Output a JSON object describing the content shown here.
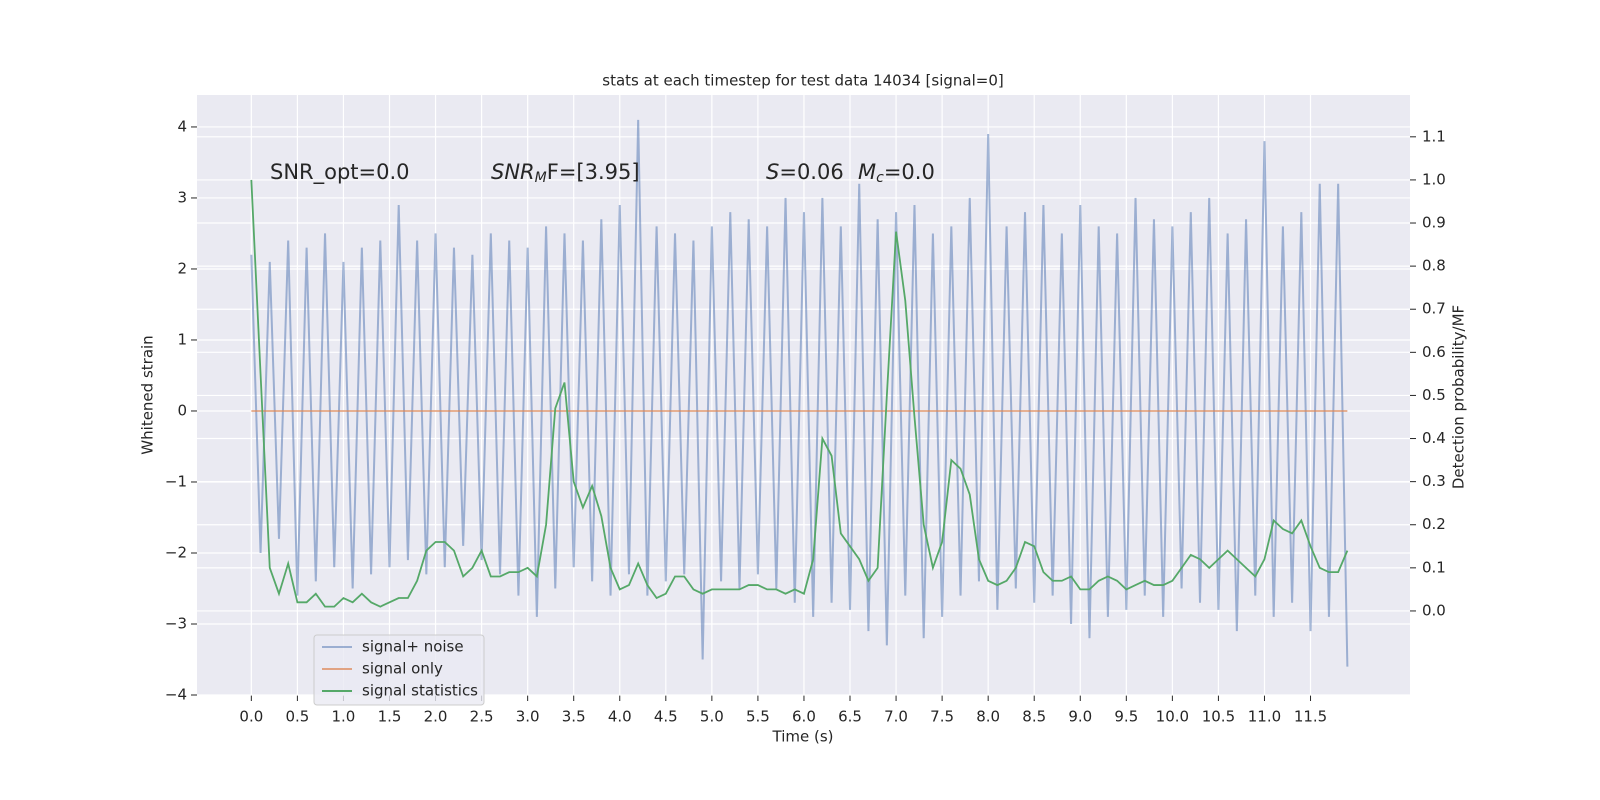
{
  "chart_data": {
    "type": "line",
    "title": "stats at each timestep for test data 14034 [signal=0]",
    "xlabel": "Time (s)",
    "ylabel": "Whitened strain",
    "y2label": "Detection probability/MF",
    "annotations": [
      "SNR_opt=0.0",
      {
        "base": "SNR",
        "sub": "M",
        "rest": "F=[3.95]"
      },
      {
        "base": "S",
        "rest": "=0.06"
      },
      {
        "base": "M",
        "sub": "c",
        "rest": "=0.0"
      }
    ],
    "x": [
      0.0,
      0.1,
      0.2,
      0.3,
      0.4,
      0.5,
      0.6,
      0.7,
      0.8,
      0.9,
      1.0,
      1.1,
      1.2,
      1.3,
      1.4,
      1.5,
      1.6,
      1.7,
      1.8,
      1.9,
      2.0,
      2.1,
      2.2,
      2.3,
      2.4,
      2.5,
      2.6,
      2.7,
      2.8,
      2.9,
      3.0,
      3.1,
      3.2,
      3.3,
      3.4,
      3.5,
      3.6,
      3.7,
      3.8,
      3.9,
      4.0,
      4.1,
      4.2,
      4.3,
      4.4,
      4.5,
      4.6,
      4.7,
      4.8,
      4.9,
      5.0,
      5.1,
      5.2,
      5.3,
      5.4,
      5.5,
      5.6,
      5.7,
      5.8,
      5.9,
      6.0,
      6.1,
      6.2,
      6.3,
      6.4,
      6.5,
      6.6,
      6.7,
      6.8,
      6.9,
      7.0,
      7.1,
      7.2,
      7.3,
      7.4,
      7.5,
      7.6,
      7.7,
      7.8,
      7.9,
      8.0,
      8.1,
      8.2,
      8.3,
      8.4,
      8.5,
      8.6,
      8.7,
      8.8,
      8.9,
      9.0,
      9.1,
      9.2,
      9.3,
      9.4,
      9.5,
      9.6,
      9.7,
      9.8,
      9.9,
      10.0,
      10.1,
      10.2,
      10.3,
      10.4,
      10.5,
      10.6,
      10.7,
      10.8,
      10.9,
      11.0,
      11.1,
      11.2,
      11.3,
      11.4,
      11.5,
      11.6,
      11.7,
      11.8,
      11.9
    ],
    "series": [
      {
        "name": "signal+ noise",
        "color": "#4c72b0",
        "opacity": 0.5,
        "axis": "y",
        "values": [
          2.2,
          -2.0,
          2.1,
          -1.8,
          2.4,
          -2.6,
          2.3,
          -2.4,
          2.5,
          -2.2,
          2.1,
          -2.5,
          2.3,
          -2.3,
          2.4,
          -2.2,
          2.9,
          -2.1,
          2.4,
          -2.3,
          2.5,
          -2.2,
          2.3,
          -1.9,
          2.2,
          -2.1,
          2.5,
          -2.3,
          2.4,
          -2.6,
          2.3,
          -2.9,
          2.6,
          -2.5,
          2.5,
          -2.2,
          2.4,
          -2.4,
          2.7,
          -2.6,
          2.9,
          -2.3,
          4.1,
          -2.6,
          2.6,
          -2.4,
          2.5,
          -2.3,
          2.4,
          -3.5,
          2.6,
          -2.4,
          2.8,
          -2.5,
          2.7,
          -2.3,
          2.6,
          -2.5,
          3.0,
          -2.7,
          2.8,
          -2.9,
          3.0,
          -2.7,
          2.6,
          -2.8,
          3.2,
          -3.1,
          2.7,
          -3.3,
          2.8,
          -2.6,
          2.9,
          -3.2,
          2.5,
          -2.9,
          2.6,
          -2.6,
          3.0,
          -2.4,
          3.9,
          -2.8,
          2.6,
          -2.5,
          2.8,
          -2.7,
          2.9,
          -2.6,
          2.5,
          -3.0,
          2.9,
          -3.2,
          2.6,
          -2.9,
          2.5,
          -2.8,
          3.0,
          -2.6,
          2.7,
          -2.9,
          2.6,
          -2.5,
          2.8,
          -2.7,
          3.0,
          -2.8,
          2.5,
          -3.1,
          2.7,
          -2.6,
          3.8,
          -2.9,
          2.6,
          -2.7,
          2.8,
          -3.1,
          3.2,
          -2.9,
          3.2,
          -3.6
        ]
      },
      {
        "name": "signal only",
        "color": "#dd8452",
        "opacity": 0.7,
        "axis": "y",
        "values": [
          0,
          0,
          0,
          0,
          0,
          0,
          0,
          0,
          0,
          0,
          0,
          0,
          0,
          0,
          0,
          0,
          0,
          0,
          0,
          0,
          0,
          0,
          0,
          0,
          0,
          0,
          0,
          0,
          0,
          0,
          0,
          0,
          0,
          0,
          0,
          0,
          0,
          0,
          0,
          0,
          0,
          0,
          0,
          0,
          0,
          0,
          0,
          0,
          0,
          0,
          0,
          0,
          0,
          0,
          0,
          0,
          0,
          0,
          0,
          0,
          0,
          0,
          0,
          0,
          0,
          0,
          0,
          0,
          0,
          0,
          0,
          0,
          0,
          0,
          0,
          0,
          0,
          0,
          0,
          0,
          0,
          0,
          0,
          0,
          0,
          0,
          0,
          0,
          0,
          0,
          0,
          0,
          0,
          0,
          0,
          0,
          0,
          0,
          0,
          0,
          0,
          0,
          0,
          0,
          0,
          0,
          0,
          0,
          0,
          0,
          0,
          0,
          0,
          0,
          0,
          0,
          0,
          0,
          0,
          0
        ]
      },
      {
        "name": "signal statistics",
        "color": "#55a868",
        "opacity": 1,
        "axis": "y2",
        "values": [
          1.0,
          0.55,
          0.1,
          0.04,
          0.11,
          0.02,
          0.02,
          0.04,
          0.01,
          0.01,
          0.03,
          0.02,
          0.04,
          0.02,
          0.01,
          0.02,
          0.03,
          0.03,
          0.07,
          0.14,
          0.16,
          0.16,
          0.14,
          0.08,
          0.1,
          0.14,
          0.08,
          0.08,
          0.09,
          0.09,
          0.1,
          0.08,
          0.2,
          0.47,
          0.53,
          0.3,
          0.24,
          0.29,
          0.22,
          0.1,
          0.05,
          0.06,
          0.11,
          0.06,
          0.03,
          0.04,
          0.08,
          0.08,
          0.05,
          0.04,
          0.05,
          0.05,
          0.05,
          0.05,
          0.06,
          0.06,
          0.05,
          0.05,
          0.04,
          0.05,
          0.04,
          0.12,
          0.4,
          0.36,
          0.18,
          0.15,
          0.12,
          0.07,
          0.1,
          0.5,
          0.88,
          0.72,
          0.45,
          0.2,
          0.1,
          0.16,
          0.35,
          0.33,
          0.27,
          0.12,
          0.07,
          0.06,
          0.07,
          0.1,
          0.16,
          0.15,
          0.09,
          0.07,
          0.07,
          0.08,
          0.05,
          0.05,
          0.07,
          0.08,
          0.07,
          0.05,
          0.06,
          0.07,
          0.06,
          0.06,
          0.07,
          0.1,
          0.13,
          0.12,
          0.1,
          0.12,
          0.14,
          0.12,
          0.1,
          0.08,
          0.12,
          0.21,
          0.19,
          0.18,
          0.21,
          0.15,
          0.1,
          0.09,
          0.09,
          0.14
        ]
      }
    ],
    "xlim": [
      -0.59,
      12.58
    ],
    "xticks": [
      {
        "value": 0,
        "label": "0.0"
      },
      0.5,
      {
        "value": 1,
        "label": "1.0"
      },
      1.5,
      {
        "value": 2,
        "label": "2.0"
      },
      2.5,
      {
        "value": 3,
        "label": "3.0"
      },
      3.5,
      {
        "value": 4,
        "label": "4.0"
      },
      4.5,
      {
        "value": 5,
        "label": "5.0"
      },
      5.5,
      {
        "value": 6,
        "label": "6.0"
      },
      6.5,
      {
        "value": 7,
        "label": "7.0"
      },
      7.5,
      {
        "value": 8,
        "label": "8.0"
      },
      8.5,
      {
        "value": 9,
        "label": "9.0"
      },
      9.5,
      {
        "value": 10,
        "label": "10.0"
      },
      10.5,
      {
        "value": 11,
        "label": "11.0"
      },
      11.5
    ],
    "ylim": [
      -4.0,
      4.45
    ],
    "yticks": [
      {
        "value": -4,
        "label": "−4"
      },
      {
        "value": -3,
        "label": "−3"
      },
      {
        "value": -2,
        "label": "−2"
      },
      {
        "value": -1,
        "label": "−1"
      },
      0,
      1,
      2,
      3,
      4
    ],
    "y2lim": [
      -0.195,
      1.197
    ],
    "y2ticks": [
      {
        "value": 0,
        "label": "0.0"
      },
      0.1,
      0.2,
      0.3,
      0.4,
      0.5,
      0.6,
      0.7,
      0.8,
      0.9,
      {
        "value": 1,
        "label": "1.0"
      },
      1.1
    ],
    "grid": true,
    "legend": "lower left"
  }
}
